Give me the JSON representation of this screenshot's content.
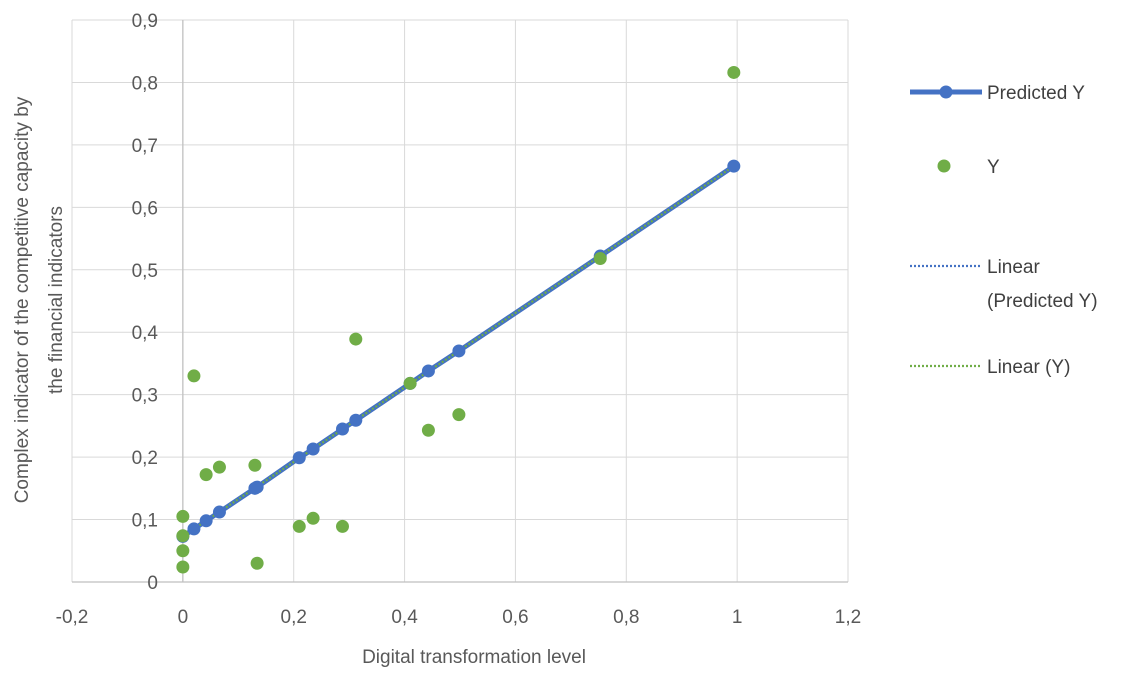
{
  "chart_data": {
    "type": "scatter",
    "title": "",
    "xlabel": "Digital transformation level",
    "ylabel_lines": [
      "Complex indicator of the competitive capacity by",
      "the financial indicators"
    ],
    "xlim": [
      -0.2,
      1.2
    ],
    "ylim": [
      0,
      0.9
    ],
    "x_ticks": [
      -0.2,
      0,
      0.2,
      0.4,
      0.6,
      0.8,
      1,
      1.2
    ],
    "y_ticks": [
      0,
      0.1,
      0.2,
      0.3,
      0.4,
      0.5,
      0.6,
      0.7,
      0.8,
      0.9
    ],
    "x_tick_labels": [
      "-0,2",
      "0",
      "0,2",
      "0,4",
      "0,6",
      "0,8",
      "1",
      "1,2"
    ],
    "y_tick_labels": [
      "0",
      "0,1",
      "0,2",
      "0,3",
      "0,4",
      "0,5",
      "0,6",
      "0,7",
      "0,8",
      "0,9"
    ],
    "grid": true,
    "legend_position": "right",
    "series": [
      {
        "name": "Predicted Y",
        "kind": "line-markers",
        "color": "#4472c4",
        "points": [
          [
            0,
            0.073
          ],
          [
            0.02,
            0.085
          ],
          [
            0.042,
            0.098
          ],
          [
            0.066,
            0.112
          ],
          [
            0.13,
            0.15
          ],
          [
            0.134,
            0.152
          ],
          [
            0.21,
            0.199
          ],
          [
            0.235,
            0.213
          ],
          [
            0.288,
            0.245
          ],
          [
            0.312,
            0.259
          ],
          [
            0.41,
            0.318
          ],
          [
            0.443,
            0.338
          ],
          [
            0.498,
            0.37
          ],
          [
            0.753,
            0.522
          ],
          [
            0.994,
            0.666
          ]
        ]
      },
      {
        "name": "Y",
        "kind": "markers",
        "color": "#70ad47",
        "points": [
          [
            0,
            0.024
          ],
          [
            0,
            0.05
          ],
          [
            0,
            0.074
          ],
          [
            0,
            0.105
          ],
          [
            0.02,
            0.33
          ],
          [
            0.042,
            0.172
          ],
          [
            0.066,
            0.184
          ],
          [
            0.13,
            0.187
          ],
          [
            0.134,
            0.03
          ],
          [
            0.21,
            0.089
          ],
          [
            0.235,
            0.102
          ],
          [
            0.288,
            0.089
          ],
          [
            0.312,
            0.389
          ],
          [
            0.41,
            0.318
          ],
          [
            0.443,
            0.243
          ],
          [
            0.498,
            0.268
          ],
          [
            0.753,
            0.518
          ],
          [
            0.994,
            0.816
          ]
        ]
      },
      {
        "name": "Linear (Predicted Y)",
        "kind": "trendline",
        "color": "#4472c4",
        "points": [
          [
            0,
            0.073
          ],
          [
            0.994,
            0.666
          ]
        ]
      },
      {
        "name": "Linear (Y)",
        "kind": "trendline",
        "color": "#70ad47",
        "points": [
          [
            0,
            0.073
          ],
          [
            0.994,
            0.666
          ]
        ]
      }
    ],
    "legend": [
      {
        "lines": [
          "Predicted Y"
        ],
        "kind": "line-markers",
        "color": "#4472c4"
      },
      {
        "lines": [
          "Y"
        ],
        "kind": "markers",
        "color": "#70ad47"
      },
      {
        "lines": [
          "Linear",
          "(Predicted Y)"
        ],
        "kind": "trendline",
        "color": "#4472c4"
      },
      {
        "lines": [
          "Linear (Y)"
        ],
        "kind": "trendline",
        "color": "#70ad47"
      }
    ],
    "colors": {
      "grid": "#d9d9d9",
      "axis": "#bfbfbf",
      "text": "#595959"
    }
  }
}
